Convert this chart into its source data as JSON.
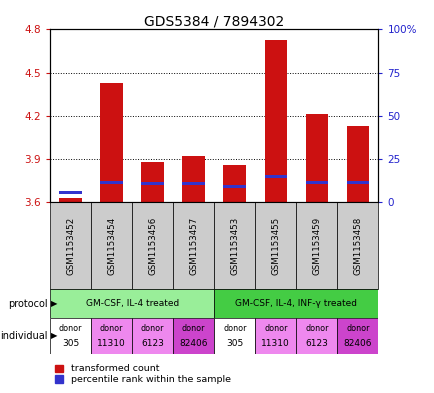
{
  "title": "GDS5384 / 7894302",
  "samples": [
    "GSM1153452",
    "GSM1153454",
    "GSM1153456",
    "GSM1153457",
    "GSM1153453",
    "GSM1153455",
    "GSM1153459",
    "GSM1153458"
  ],
  "bar_values": [
    3.63,
    4.43,
    3.88,
    3.92,
    3.86,
    4.73,
    4.21,
    4.13
  ],
  "bar_base": 3.6,
  "blue_values": [
    3.67,
    3.74,
    3.73,
    3.73,
    3.71,
    3.78,
    3.74,
    3.74
  ],
  "ylim_left": [
    3.6,
    4.8
  ],
  "ylim_right": [
    0,
    100
  ],
  "yticks_left": [
    3.6,
    3.9,
    4.2,
    4.5,
    4.8
  ],
  "yticks_right": [
    0,
    25,
    50,
    75,
    100
  ],
  "ytick_labels_right": [
    "0",
    "25",
    "50",
    "75",
    "100%"
  ],
  "bar_color": "#cc1111",
  "blue_color": "#3333cc",
  "bar_width": 0.55,
  "protocol_groups": [
    {
      "label": "GM-CSF, IL-4 treated",
      "start": 0,
      "end": 3,
      "color": "#99ee99"
    },
    {
      "label": "GM-CSF, IL-4, INF-γ treated",
      "start": 4,
      "end": 7,
      "color": "#44cc44"
    }
  ],
  "ind_colors": [
    "#ffffff",
    "#ee88ee",
    "#ee88ee",
    "#cc44cc",
    "#ffffff",
    "#ee88ee",
    "#ee88ee",
    "#cc44cc"
  ],
  "ind_labels_bot": [
    "305",
    "11310",
    "6123",
    "82406",
    "305",
    "11310",
    "6123",
    "82406"
  ],
  "legend_labels": [
    "transformed count",
    "percentile rank within the sample"
  ],
  "grid_color": "black",
  "title_fontsize": 10,
  "axis_color_left": "#cc1111",
  "axis_color_right": "#2222cc",
  "sample_bg_color": "#cccccc"
}
